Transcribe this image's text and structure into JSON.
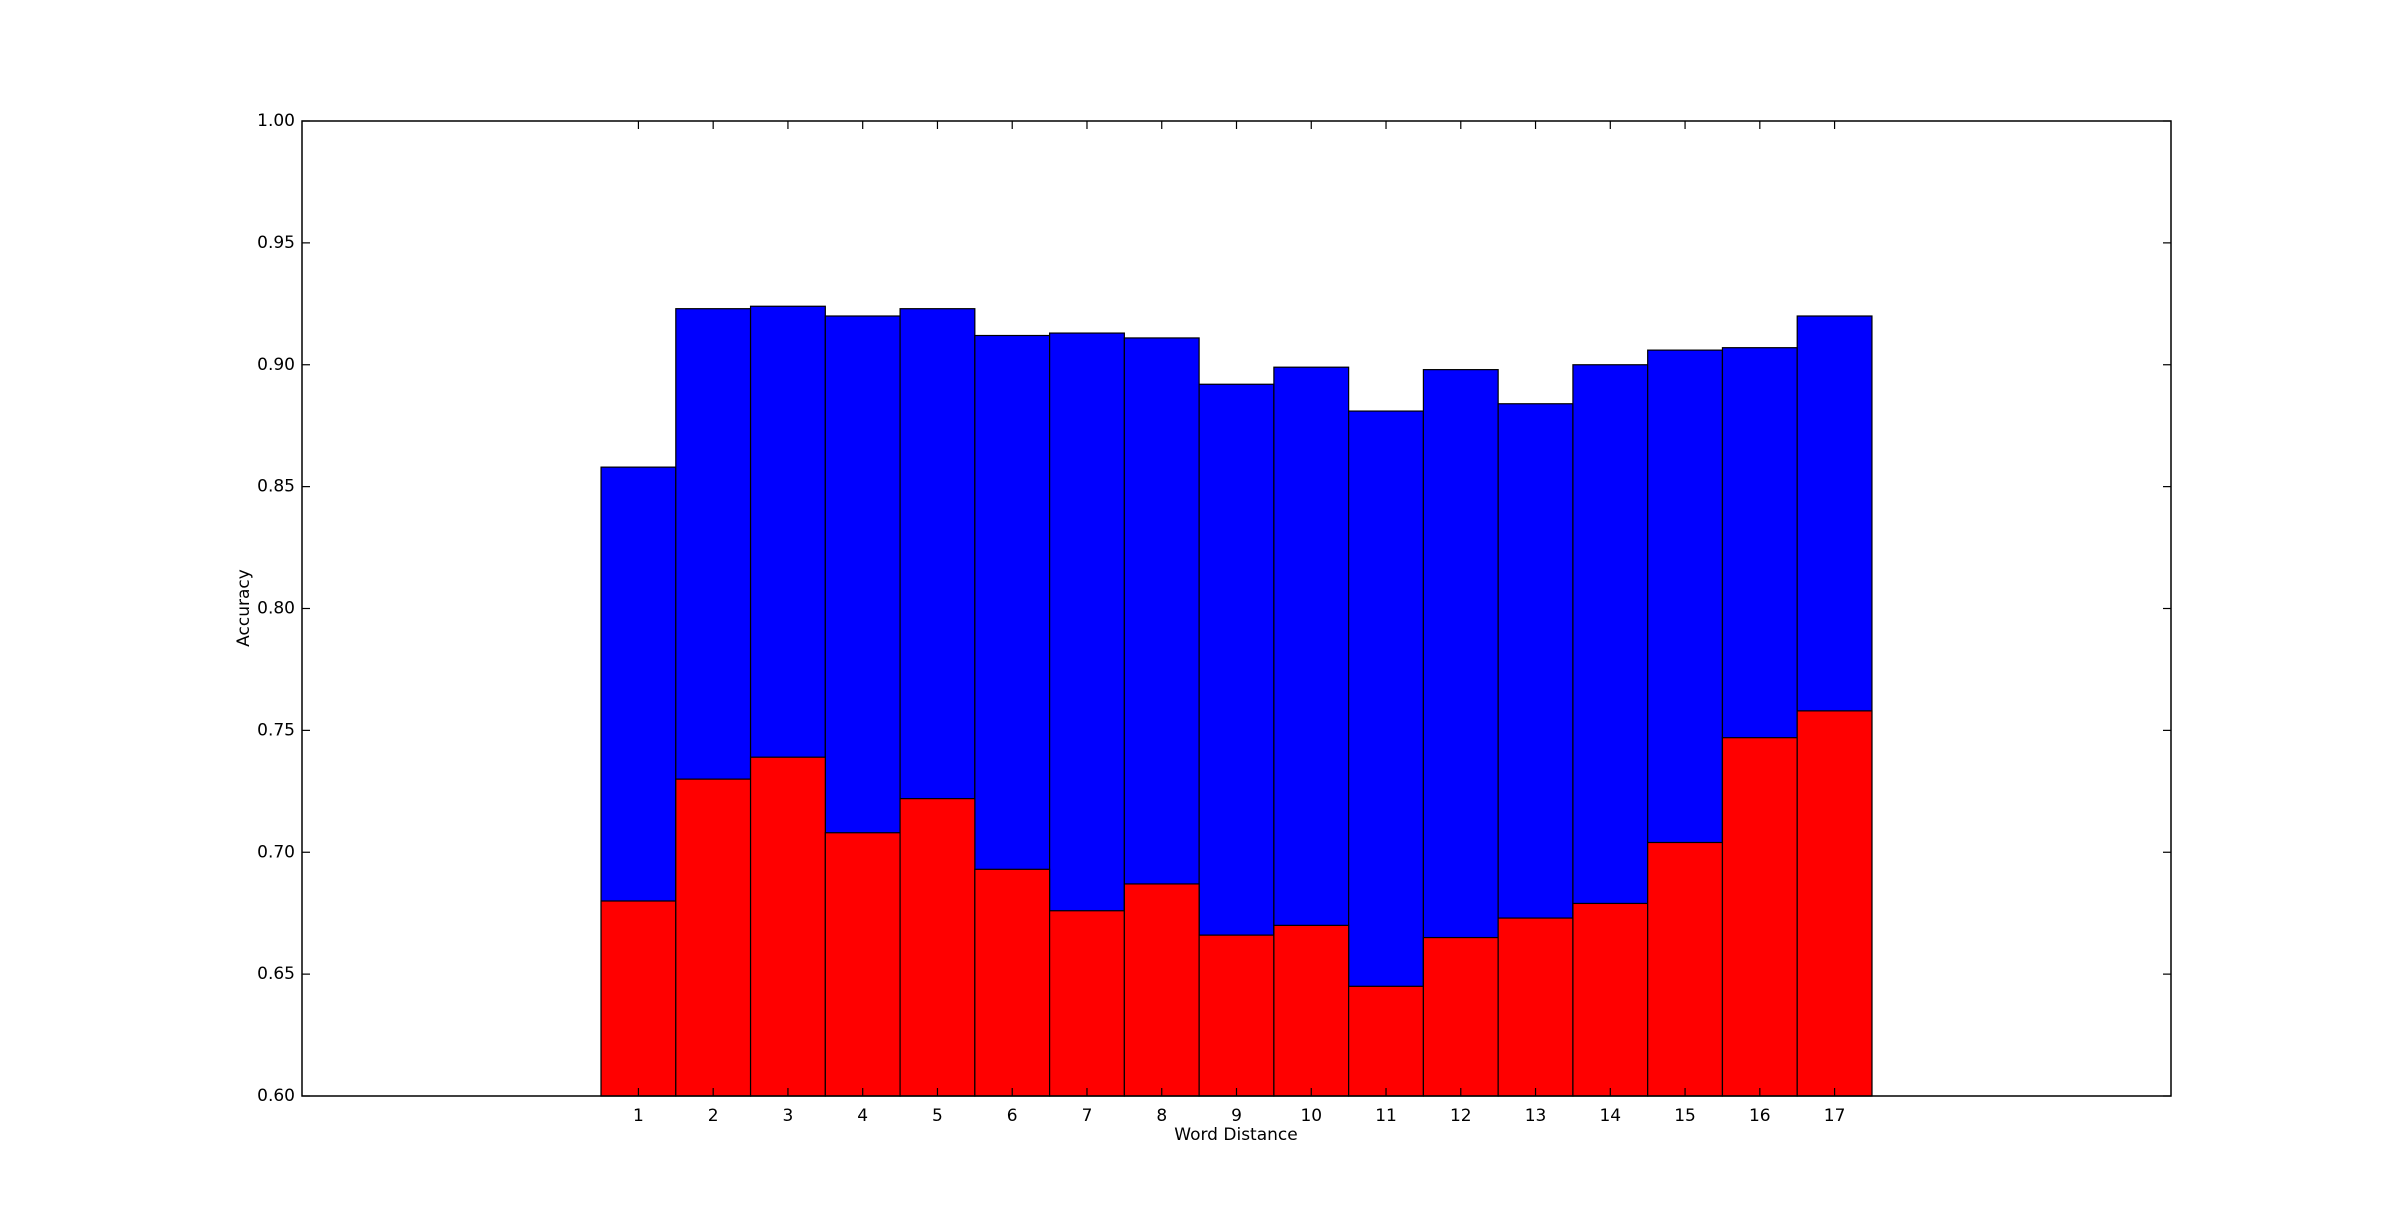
{
  "chart_data": {
    "type": "bar",
    "title": "",
    "xlabel": "Word Distance",
    "ylabel": "Accuracy",
    "categories": [
      "1",
      "2",
      "3",
      "4",
      "5",
      "6",
      "7",
      "8",
      "9",
      "10",
      "11",
      "12",
      "13",
      "14",
      "15",
      "16",
      "17"
    ],
    "xlim": [
      -3.5,
      21.5
    ],
    "ylim": [
      0.6,
      1.0
    ],
    "yticks": [
      "0.60",
      "0.65",
      "0.70",
      "0.75",
      "0.80",
      "0.85",
      "0.90",
      "0.95",
      "1.00"
    ],
    "grid": false,
    "bar_width": 1.0,
    "series": [
      {
        "values": [
          0.858,
          0.923,
          0.924,
          0.92,
          0.923,
          0.912,
          0.913,
          0.911,
          0.892,
          0.899,
          0.881,
          0.898,
          0.884,
          0.9,
          0.906,
          0.907,
          0.92
        ],
        "color": "#0000ff"
      },
      {
        "values": [
          0.68,
          0.73,
          0.739,
          0.708,
          0.722,
          0.693,
          0.676,
          0.687,
          0.666,
          0.67,
          0.645,
          0.665,
          0.673,
          0.679,
          0.704,
          0.747,
          0.758
        ],
        "color": "#ff0000"
      }
    ]
  }
}
